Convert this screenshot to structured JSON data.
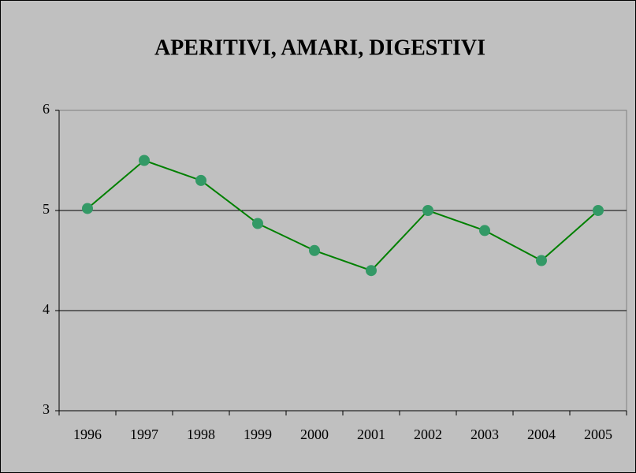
{
  "chart_data": {
    "type": "line",
    "title": "APERITIVI, AMARI, DIGESTIVI",
    "categories": [
      "1996",
      "1997",
      "1998",
      "1999",
      "2000",
      "2001",
      "2002",
      "2003",
      "2004",
      "2005"
    ],
    "series": [
      {
        "name": "APERITIVI, AMARI, DIGESTIVI",
        "color": "#008000",
        "marker_color": "#339966",
        "values": [
          5.02,
          5.5,
          5.3,
          4.87,
          4.6,
          4.4,
          5.0,
          4.8,
          4.5,
          5.0
        ]
      }
    ],
    "ylim": [
      3,
      6
    ],
    "yticks": [
      3,
      4,
      5,
      6
    ],
    "grid": true
  }
}
